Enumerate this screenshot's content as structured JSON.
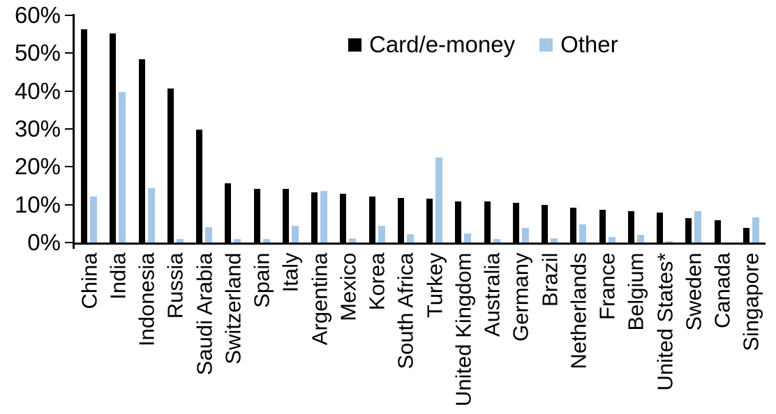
{
  "chart_data": {
    "type": "bar",
    "title": "",
    "xlabel": "",
    "ylabel": "",
    "ylim": [
      0,
      60
    ],
    "ytick_step": 10,
    "ytick_labels": [
      "0%",
      "10%",
      "20%",
      "30%",
      "40%",
      "50%",
      "60%"
    ],
    "grid": false,
    "legend_position": "top-center",
    "categories": [
      "China",
      "India",
      "Indonesia",
      "Russia",
      "Saudi Arabia",
      "Switzerland",
      "Spain",
      "Italy",
      "Argentina",
      "Mexico",
      "Korea",
      "South Africa",
      "Turkey",
      "United Kingdom",
      "Australia",
      "Germany",
      "Brazil",
      "Netherlands",
      "France",
      "Belgium",
      "United States*",
      "Sweden",
      "Canada",
      "Singapore"
    ],
    "series": [
      {
        "name": "Card/e-money",
        "color": "#000000",
        "values": [
          56.3,
          55.2,
          48.4,
          40.6,
          29.8,
          15.7,
          14.2,
          14.1,
          13.3,
          12.9,
          12.2,
          11.8,
          11.6,
          10.9,
          10.8,
          10.5,
          10.0,
          9.3,
          8.7,
          8.2,
          7.9,
          6.5,
          5.9,
          3.9
        ]
      },
      {
        "name": "Other",
        "color": "#A4C7E8",
        "values": [
          12.2,
          39.8,
          14.4,
          1.0,
          4.0,
          0.9,
          1.0,
          4.5,
          13.7,
          1.2,
          4.5,
          2.2,
          22.4,
          2.4,
          1.0,
          3.8,
          1.2,
          4.8,
          1.5,
          2.1,
          0.3,
          8.2,
          0.0,
          6.7
        ]
      }
    ]
  }
}
